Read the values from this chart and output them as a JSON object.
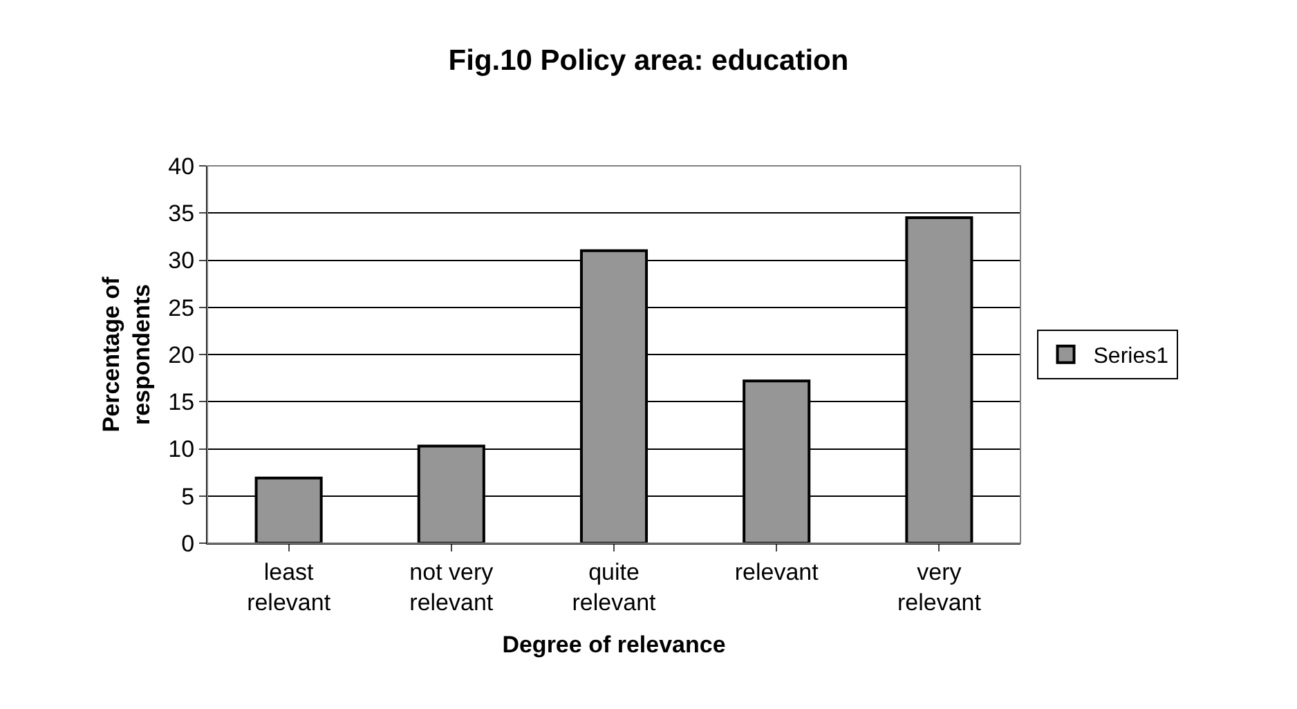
{
  "chart_data": {
    "type": "bar",
    "title": "Fig.10 Policy area: education",
    "xlabel": "Degree of relevance",
    "ylabel": "Percentage of respondents",
    "categories": [
      "least relevant",
      "not very relevant",
      "quite relevant",
      "relevant",
      "very relevant"
    ],
    "series": [
      {
        "name": "Series1",
        "color": "#969696",
        "values": [
          6.9,
          10.3,
          31.0,
          17.2,
          34.5
        ]
      }
    ],
    "ylim": [
      0,
      40
    ],
    "yticks": [
      0,
      5,
      10,
      15,
      20,
      25,
      30,
      35,
      40
    ],
    "grid": "y",
    "legend": "right"
  }
}
